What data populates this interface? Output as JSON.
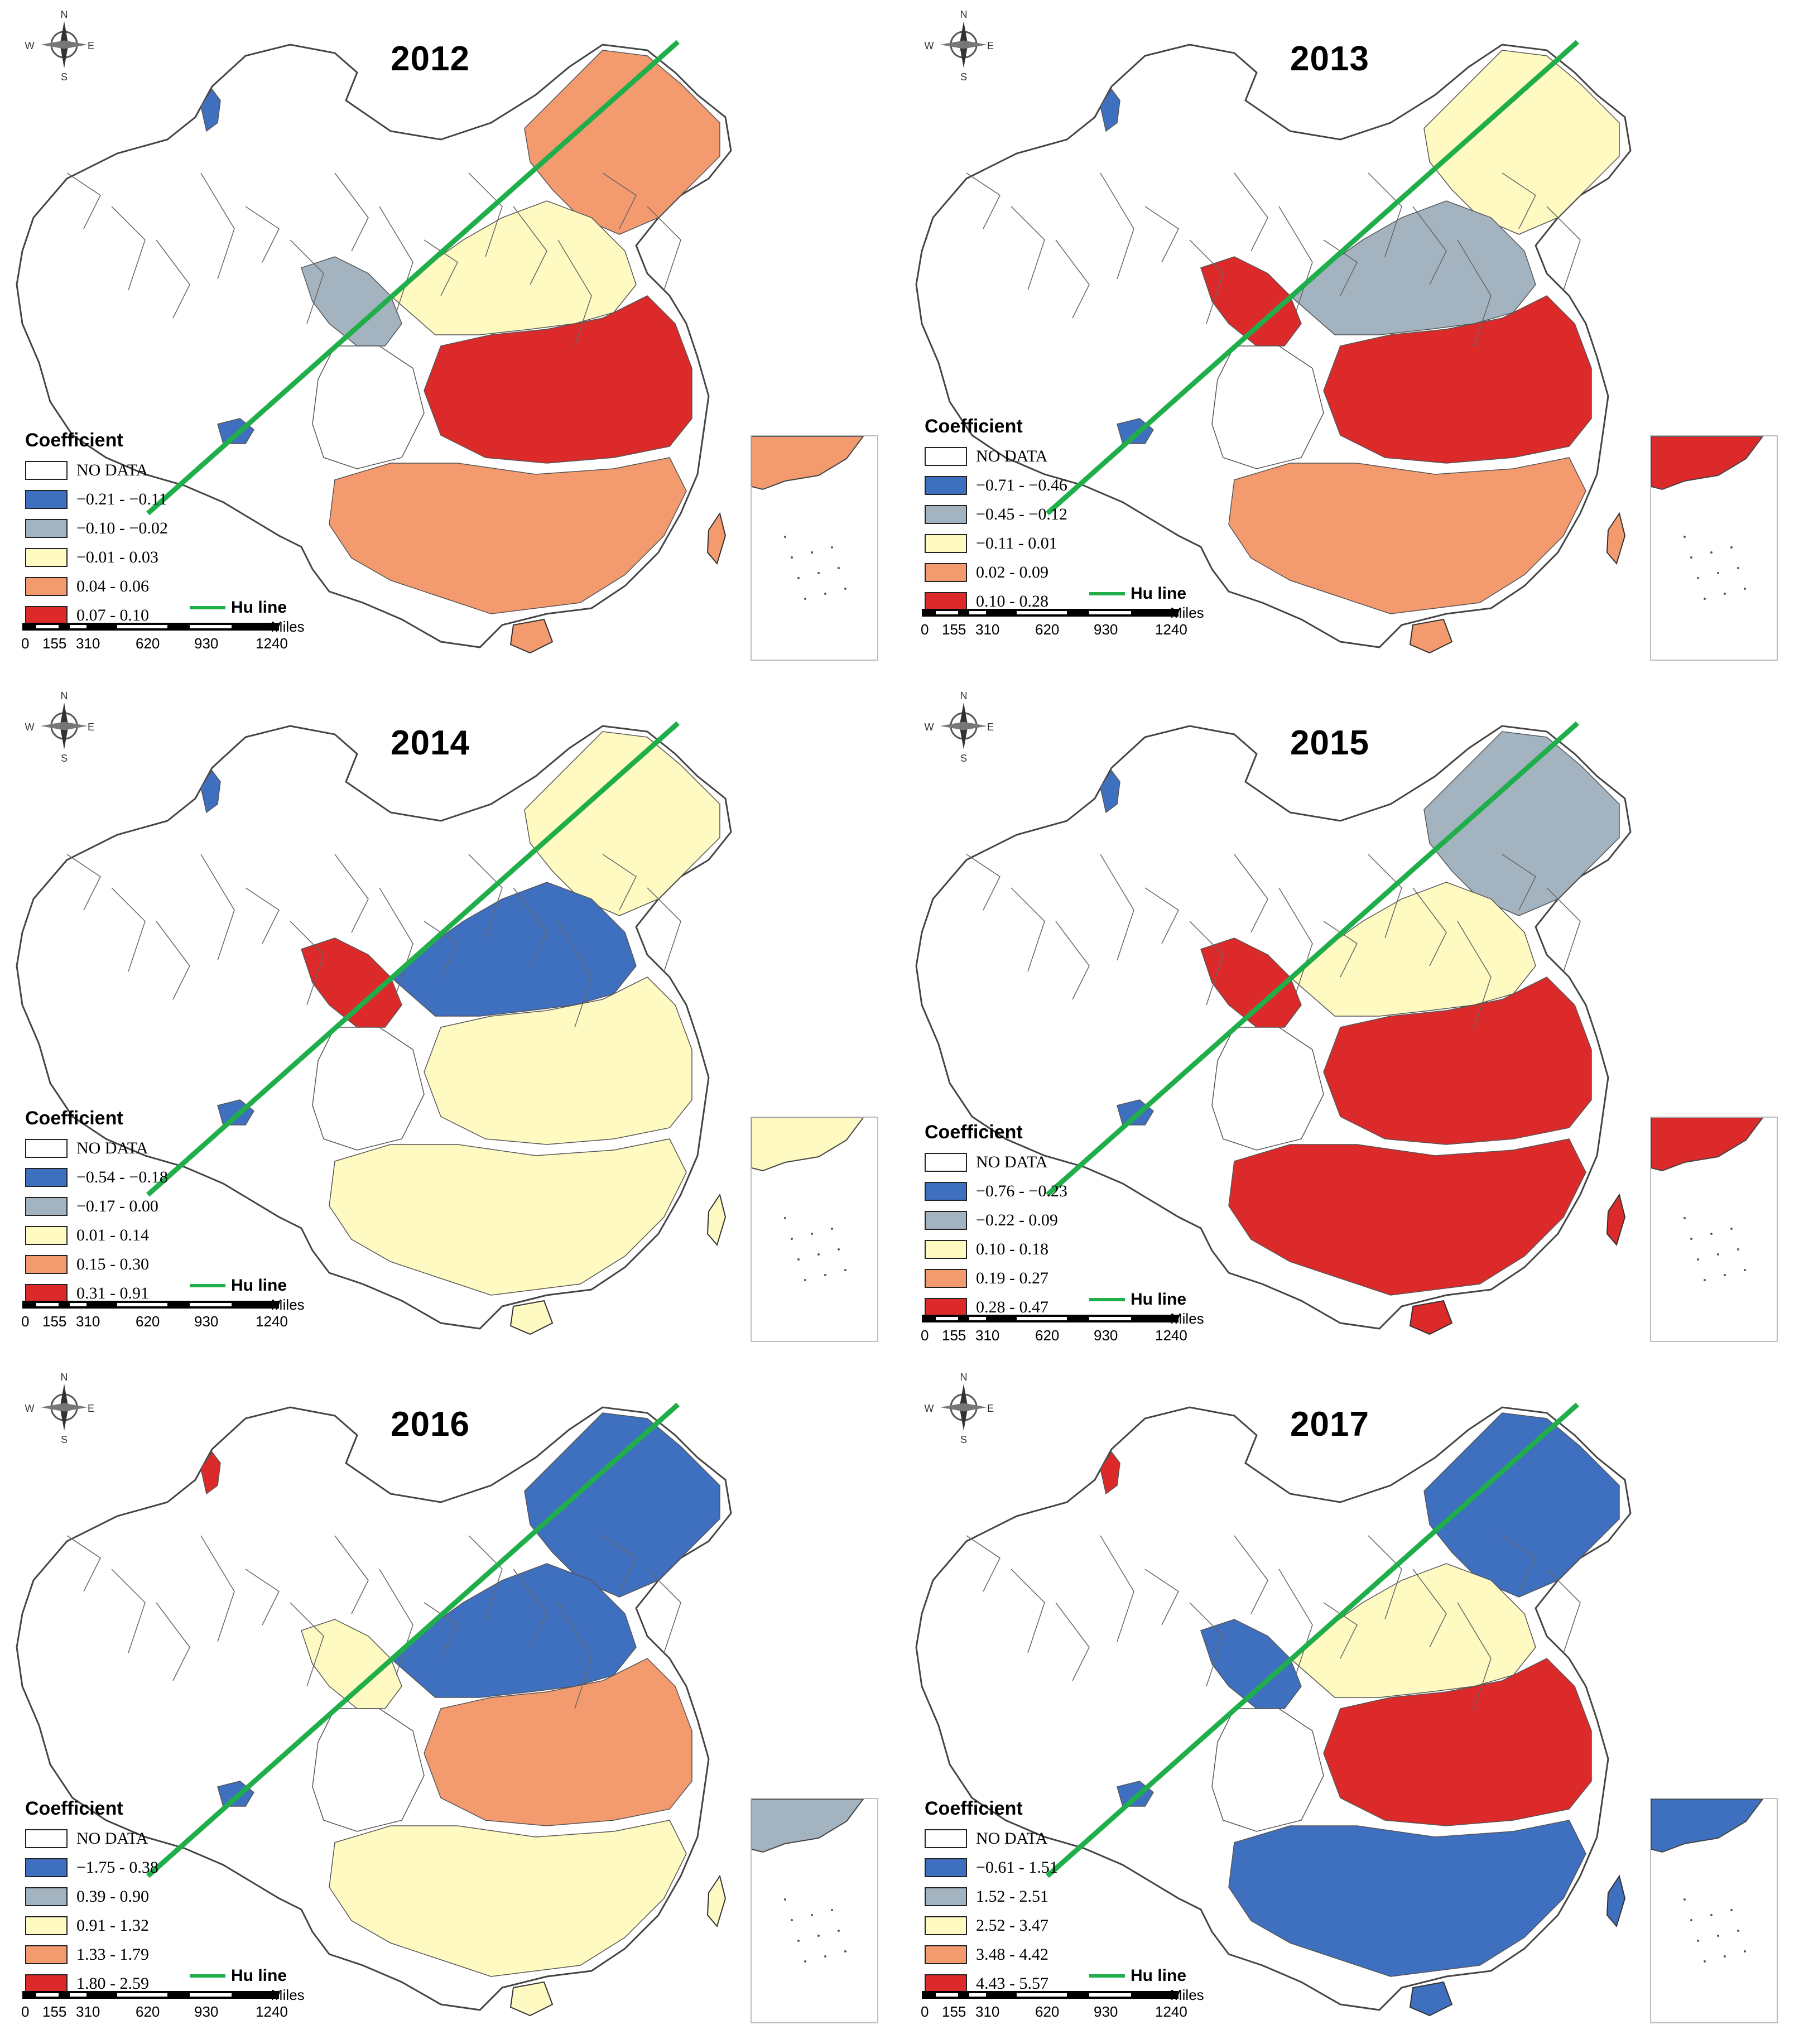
{
  "colors": {
    "no_data": "#ffffff",
    "class1": "#3f6fbf",
    "class2": "#a3b3c0",
    "class3": "#fffac2",
    "class4": "#f39a6e",
    "class5": "#dc2a2a",
    "hu_line": "#1fae4a",
    "boundary": "#555555"
  },
  "common": {
    "legend_title": "Coefficient",
    "no_data_label": "NO DATA",
    "hu_line_label": "Hu line",
    "scale_units": "Miles",
    "scale_ticks": [
      "0",
      "155",
      "310",
      "620",
      "930",
      "1240"
    ],
    "compass_n": "N",
    "compass_e": "E",
    "compass_s": "S",
    "compass_w": "W"
  },
  "panels": [
    {
      "year": "2012",
      "ranges": [
        "−0.21 - −0.11",
        "−0.10 - −0.02",
        "−0.01 - 0.03",
        "0.04 - 0.06",
        "0.07 - 0.10"
      ],
      "east_class": 4,
      "inset_class": 4
    },
    {
      "year": "2013",
      "ranges": [
        "−0.71 - −0.46",
        "−0.45 - −0.12",
        "−0.11 - 0.01",
        "0.02 - 0.09",
        "0.10 - 0.28"
      ],
      "east_class": 4,
      "inset_class": 5
    },
    {
      "year": "2014",
      "ranges": [
        "−0.54 - −0.18",
        "−0.17 - 0.00",
        "0.01 - 0.14",
        "0.15 - 0.30",
        "0.31 - 0.91"
      ],
      "east_class": 3,
      "inset_class": 3
    },
    {
      "year": "2015",
      "ranges": [
        "−0.76 - −0.23",
        "−0.22 - 0.09",
        "0.10 - 0.18",
        "0.19 - 0.27",
        "0.28 - 0.47"
      ],
      "east_class": 5,
      "inset_class": 5
    },
    {
      "year": "2016",
      "ranges": [
        "−1.75 - 0.38",
        "0.39 - 0.90",
        "0.91 - 1.32",
        "1.33 - 1.79",
        "1.80 - 2.59"
      ],
      "east_class": 3,
      "inset_class": 2
    },
    {
      "year": "2017",
      "ranges": [
        "−0.61 - 1.51",
        "1.52 - 2.51",
        "2.52 - 3.47",
        "3.48 - 4.42",
        "4.43 - 5.57"
      ],
      "east_class": 1,
      "inset_class": 1
    }
  ]
}
